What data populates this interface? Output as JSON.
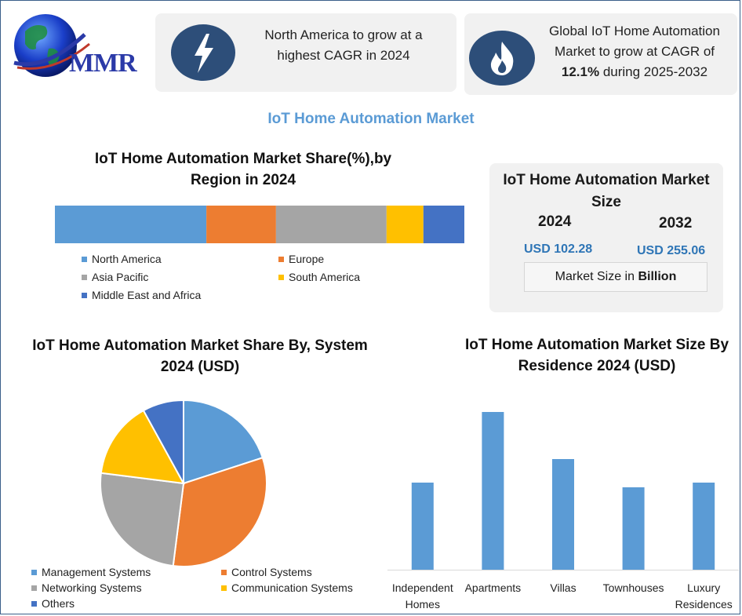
{
  "logo": {
    "text": "MMR"
  },
  "card_left": {
    "icon": "lightning-icon",
    "text": "North America to grow at a highest CAGR in 2024"
  },
  "card_right": {
    "icon": "flame-icon",
    "text_before": "Global IoT Home Automation Market to grow at CAGR of ",
    "text_bold": "12.1%",
    "text_after": " during 2025-2032"
  },
  "main_title": "IoT Home Automation Market",
  "colors": {
    "blue": "#5b9bd5",
    "orange": "#ed7d31",
    "gray": "#a5a5a5",
    "yellow": "#ffc000",
    "darkblue": "#4472c4",
    "navy": "#2d4e79"
  },
  "size_box": {
    "title": "IoT Home Automation Market Size",
    "year1": "2024",
    "value1": "USD 102.28",
    "year2": "2032",
    "value2": "USD 255.06",
    "unit_prefix": "Market Size in ",
    "unit_bold": "Billion"
  },
  "chart_data": [
    {
      "type": "bar",
      "orientation": "stacked-horizontal",
      "title": "IoT Home Automation Market Share(%),by Region in 2024",
      "series": [
        {
          "name": "North America",
          "value": 37,
          "color": "#5b9bd5"
        },
        {
          "name": "Europe",
          "value": 17,
          "color": "#ed7d31"
        },
        {
          "name": "Asia Pacific",
          "value": 27,
          "color": "#a5a5a5"
        },
        {
          "name": "South America",
          "value": 9,
          "color": "#ffc000"
        },
        {
          "name": "Middle East and Africa",
          "value": 10,
          "color": "#4472c4"
        }
      ],
      "legend": "bottom"
    },
    {
      "type": "pie",
      "title": "IoT Home Automation Market Share By, System 2024  (USD)",
      "slices": [
        {
          "name": "Management Systems",
          "value": 20,
          "color": "#5b9bd5"
        },
        {
          "name": "Control Systems",
          "value": 32,
          "color": "#ed7d31"
        },
        {
          "name": "Networking Systems",
          "value": 25,
          "color": "#a5a5a5"
        },
        {
          "name": "Communication Systems",
          "value": 15,
          "color": "#ffc000"
        },
        {
          "name": "Others",
          "value": 8,
          "color": "#4472c4"
        }
      ],
      "legend": "bottom"
    },
    {
      "type": "bar",
      "title": "IoT Home Automation Market  Size By Residence 2024  (USD)",
      "categories": [
        "Independent Homes",
        "Apartments",
        "Villas",
        "Townhouses",
        "Luxury Residences"
      ],
      "values": [
        37,
        67,
        47,
        35,
        37
      ],
      "ylim": [
        0,
        72
      ],
      "color": "#5b9bd5",
      "grid": false
    }
  ]
}
